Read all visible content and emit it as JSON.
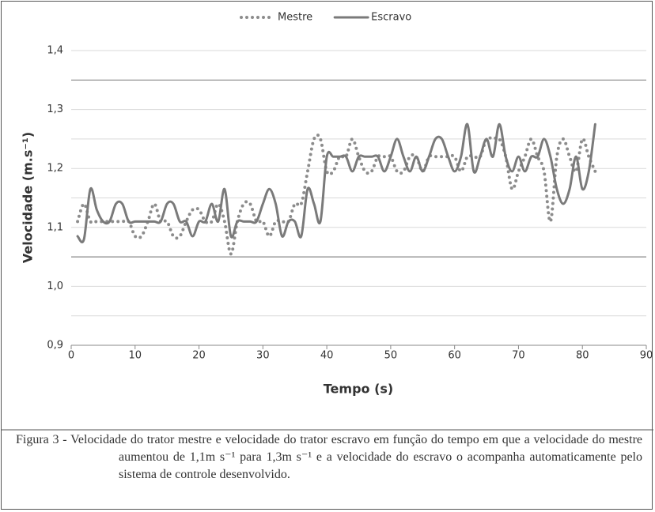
{
  "chart_data": {
    "type": "line",
    "xlabel": "Tempo (s)",
    "ylabel": "Velocidade (m.s⁻¹)",
    "caption": "Figura 3 - Velocidade do trator mestre e velocidade do trator escravo em função do tempo em que a velocidade do mestre aumentou de 1,1m s⁻¹ para 1,3m s⁻¹ e a velocidade do escravo o acompanha automaticamente pelo sistema de controle desenvolvido.",
    "x": [
      1,
      2,
      3,
      4,
      5,
      6,
      7,
      8,
      9,
      10,
      11,
      12,
      13,
      14,
      15,
      16,
      17,
      18,
      19,
      20,
      21,
      22,
      23,
      24,
      25,
      26,
      27,
      28,
      29,
      30,
      31,
      32,
      33,
      34,
      35,
      36,
      37,
      38,
      39,
      40,
      41,
      42,
      43,
      44,
      45,
      46,
      47,
      48,
      49,
      50,
      51,
      52,
      53,
      54,
      55,
      56,
      57,
      58,
      59,
      60,
      61,
      62,
      63,
      64,
      65,
      66,
      67,
      68,
      69,
      70,
      71,
      72,
      73,
      74,
      75,
      76,
      77,
      78,
      79,
      80,
      81,
      82
    ],
    "series": [
      {
        "name": "Mestre",
        "color": "#8c8c8c",
        "style": "dotted",
        "values": [
          1.11,
          1.14,
          1.11,
          1.11,
          1.11,
          1.11,
          1.11,
          1.11,
          1.11,
          1.085,
          1.085,
          1.11,
          1.14,
          1.11,
          1.11,
          1.085,
          1.085,
          1.11,
          1.13,
          1.13,
          1.11,
          1.11,
          1.14,
          1.11,
          1.055,
          1.11,
          1.14,
          1.14,
          1.11,
          1.11,
          1.085,
          1.11,
          1.11,
          1.11,
          1.14,
          1.14,
          1.195,
          1.25,
          1.25,
          1.195,
          1.195,
          1.22,
          1.22,
          1.25,
          1.22,
          1.195,
          1.195,
          1.22,
          1.22,
          1.22,
          1.195,
          1.195,
          1.22,
          1.22,
          1.195,
          1.22,
          1.22,
          1.22,
          1.22,
          1.22,
          1.195,
          1.22,
          1.22,
          1.22,
          1.25,
          1.25,
          1.25,
          1.22,
          1.165,
          1.195,
          1.22,
          1.25,
          1.22,
          1.195,
          1.11,
          1.22,
          1.25,
          1.22,
          1.195,
          1.25,
          1.22,
          1.195
        ]
      },
      {
        "name": "Escravo",
        "color": "#7a7a7a",
        "style": "solid",
        "values": [
          1.085,
          1.08,
          1.165,
          1.13,
          1.11,
          1.11,
          1.14,
          1.14,
          1.11,
          1.11,
          1.11,
          1.11,
          1.11,
          1.11,
          1.14,
          1.14,
          1.11,
          1.11,
          1.085,
          1.11,
          1.11,
          1.14,
          1.11,
          1.165,
          1.085,
          1.11,
          1.11,
          1.11,
          1.11,
          1.14,
          1.165,
          1.14,
          1.085,
          1.11,
          1.11,
          1.085,
          1.165,
          1.14,
          1.11,
          1.22,
          1.22,
          1.22,
          1.22,
          1.195,
          1.22,
          1.22,
          1.22,
          1.22,
          1.195,
          1.22,
          1.25,
          1.22,
          1.195,
          1.22,
          1.195,
          1.22,
          1.25,
          1.25,
          1.22,
          1.195,
          1.22,
          1.275,
          1.195,
          1.22,
          1.25,
          1.22,
          1.275,
          1.22,
          1.195,
          1.22,
          1.195,
          1.22,
          1.22,
          1.25,
          1.22,
          1.165,
          1.14,
          1.165,
          1.22,
          1.165,
          1.195,
          1.275
        ]
      }
    ],
    "xlim": [
      0,
      90
    ],
    "xticks": [
      0,
      10,
      20,
      30,
      40,
      50,
      60,
      70,
      80,
      90
    ],
    "ylim": [
      0.9,
      1.4
    ],
    "yticks": [
      {
        "value": 0.9,
        "label": "0,9"
      },
      {
        "value": 1.0,
        "label": "1,0"
      },
      {
        "value": 1.1,
        "label": "1,1"
      },
      {
        "value": 1.2,
        "label": "1,2"
      },
      {
        "value": 1.3,
        "label": "1,3"
      },
      {
        "value": 1.4,
        "label": "1,4"
      }
    ],
    "yminor": [
      0.95,
      1.15,
      1.25
    ],
    "reference_lines": [
      1.05,
      1.35
    ],
    "grid": true,
    "legend": "top"
  }
}
